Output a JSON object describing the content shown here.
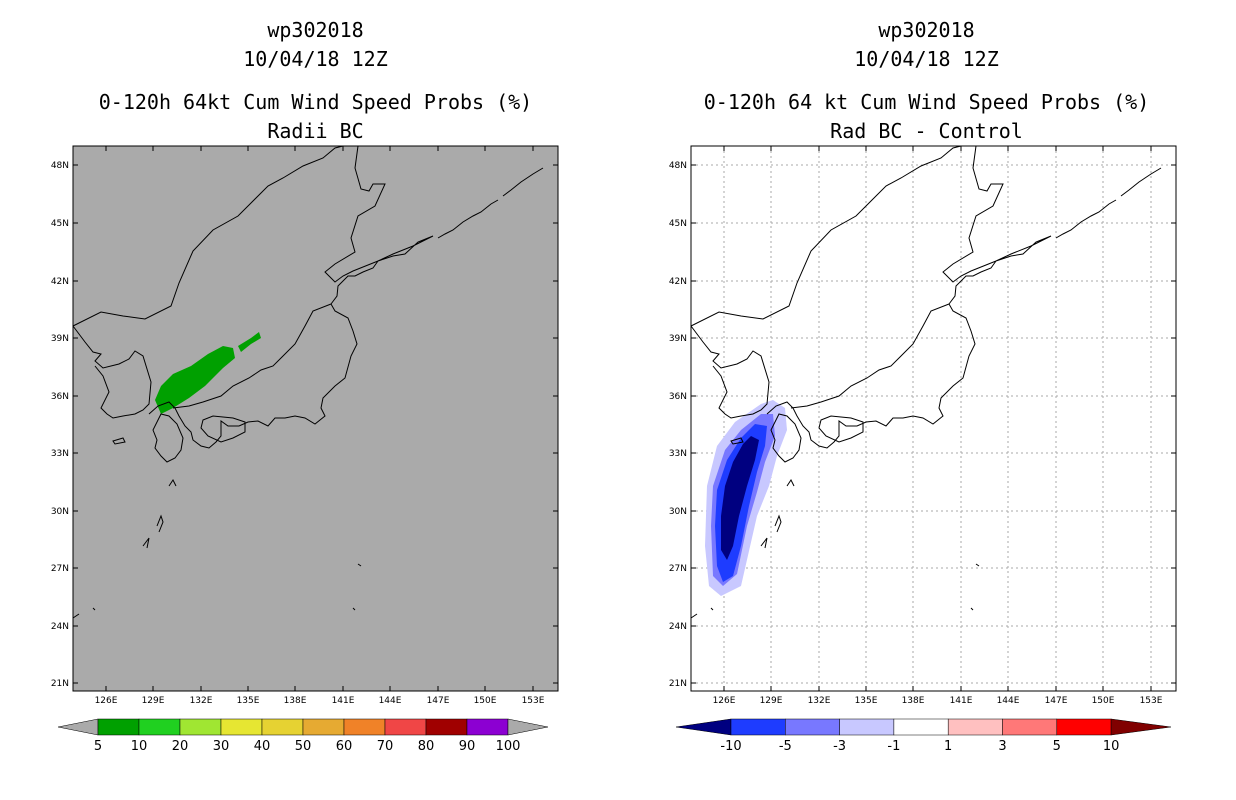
{
  "left": {
    "title_line1": "wp302018",
    "title_line2": "10/04/18 12Z",
    "title_line3": "0-120h 64kt Cum Wind Speed Probs (%)",
    "title_line4": "Radii BC",
    "lat_labels": [
      "48N",
      "45N",
      "42N",
      "39N",
      "36N",
      "33N",
      "30N",
      "27N",
      "24N",
      "21N"
    ],
    "lon_labels": [
      "126E",
      "129E",
      "132E",
      "135E",
      "138E",
      "141E",
      "144E",
      "147E",
      "150E",
      "153E"
    ],
    "colorbar": {
      "labels": [
        "5",
        "10",
        "20",
        "30",
        "40",
        "50",
        "60",
        "70",
        "80",
        "90",
        "100"
      ],
      "colors": [
        "#00a000",
        "#20d020",
        "#a0e632",
        "#e6e632",
        "#e6d232",
        "#e6aa32",
        "#f08228",
        "#f04646",
        "#a00000",
        "#8c00d2"
      ],
      "arrow_color": "#aaaaaa"
    },
    "background_color": "#aaaaaa",
    "swath_color": "#00a000"
  },
  "right": {
    "title_line1": "wp302018",
    "title_line2": "10/04/18 12Z",
    "title_line3": "0-120h 64 kt Cum Wind Speed Probs (%)",
    "title_line4": "Rad BC - Control",
    "lat_labels": [
      "48N",
      "45N",
      "42N",
      "39N",
      "36N",
      "33N",
      "30N",
      "27N",
      "24N",
      "21N"
    ],
    "lon_labels": [
      "126E",
      "129E",
      "132E",
      "135E",
      "138E",
      "141E",
      "144E",
      "147E",
      "150E",
      "153E"
    ],
    "colorbar": {
      "labels": [
        "-10",
        "-5",
        "-3",
        "-1",
        "1",
        "3",
        "5",
        "10"
      ],
      "colors": [
        "#1e3cff",
        "#7878ff",
        "#c8c8ff",
        "#ffffff",
        "#ffc0c0",
        "#ff7878",
        "#ff0000"
      ],
      "left_arrow_color": "#000080",
      "right_arrow_color": "#800000"
    },
    "background_color": "#ffffff",
    "contour_colors": [
      "#c8c8ff",
      "#7878ff",
      "#1e3cff",
      "#000080"
    ]
  }
}
